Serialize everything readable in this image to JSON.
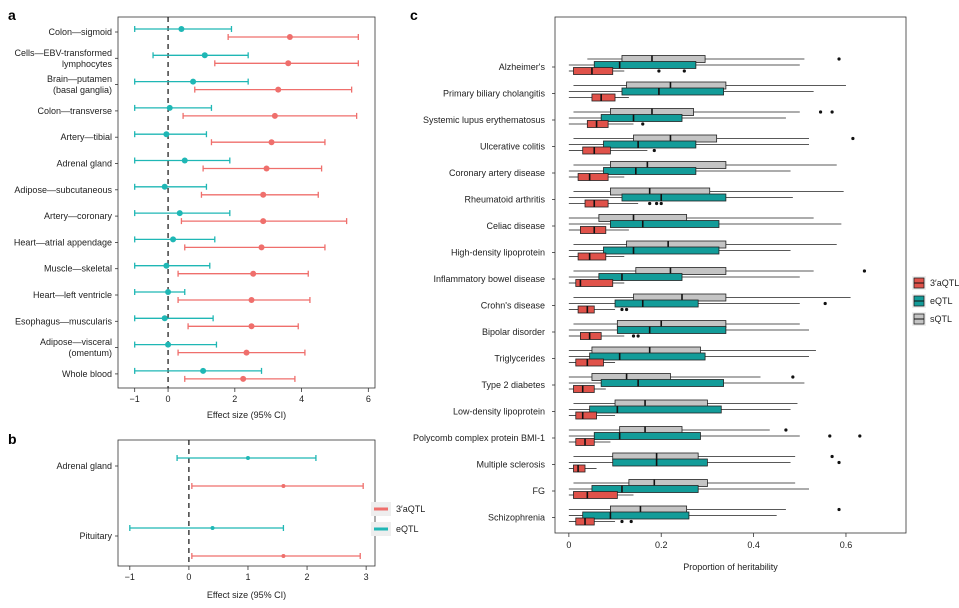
{
  "colors": {
    "aqtl": "#EF6F6C",
    "eqtl": "#1FB7B5",
    "sqtl": "#BEBEBE",
    "aqtl_box": "#E0524A",
    "eqtl_box": "#139C99",
    "sqtl_box": "#C4C4C4"
  },
  "chart_data": [
    {
      "id": "a",
      "panel_label": "a",
      "type": "forest",
      "xlabel": "Effect size (95% CI)",
      "xlim": [
        -1.5,
        6.2
      ],
      "xticks": [
        -1,
        0,
        2,
        4,
        6
      ],
      "xtick_labels": [
        "−1",
        "0",
        "2",
        "4",
        "6"
      ],
      "reference_line": 0,
      "categories": [
        [
          "Colon—sigmoid"
        ],
        [
          "Cells—EBV-transformed",
          "lymphocytes"
        ],
        [
          "Brain—putamen",
          "(basal ganglia)"
        ],
        [
          "Colon—transverse"
        ],
        [
          "Artery—tibial"
        ],
        [
          "Adrenal gland"
        ],
        [
          "Adipose—subcutaneous"
        ],
        [
          "Artery—coronary"
        ],
        [
          "Heart—atrial appendage"
        ],
        [
          "Muscle—skeletal"
        ],
        [
          "Heart—left ventricle"
        ],
        [
          "Esophagus—muscularis"
        ],
        [
          "Adipose—visceral",
          "(omentum)"
        ],
        [
          "Whole blood"
        ]
      ],
      "series": [
        {
          "name": "eQTL",
          "color_key": "eqtl",
          "estimate": [
            0.4,
            1.1,
            0.75,
            0.05,
            -0.05,
            0.5,
            -0.1,
            0.35,
            0.15,
            -0.05,
            0.0,
            -0.1,
            0.0,
            1.05
          ],
          "lower": [
            -1.0,
            -0.45,
            -1.0,
            -1.0,
            -1.0,
            -1.0,
            -1.0,
            -1.0,
            -1.0,
            -1.0,
            -1.0,
            -1.0,
            -1.0,
            -1.0
          ],
          "upper": [
            1.9,
            2.4,
            2.4,
            1.3,
            1.15,
            1.85,
            1.15,
            1.85,
            1.4,
            1.25,
            0.5,
            1.35,
            1.45,
            2.8
          ]
        },
        {
          "name": "3′aQTL",
          "color_key": "aqtl",
          "estimate": [
            3.65,
            3.6,
            3.3,
            3.2,
            3.1,
            2.95,
            2.85,
            2.85,
            2.8,
            2.55,
            2.5,
            2.5,
            2.35,
            2.25
          ],
          "lower": [
            1.8,
            1.4,
            0.8,
            0.45,
            1.3,
            1.05,
            1.0,
            0.4,
            0.5,
            0.3,
            0.3,
            0.6,
            0.3,
            0.5
          ],
          "upper": [
            5.7,
            5.7,
            5.5,
            5.65,
            4.7,
            4.6,
            4.5,
            5.35,
            4.7,
            4.2,
            4.25,
            3.9,
            4.1,
            3.8
          ]
        }
      ]
    },
    {
      "id": "b",
      "panel_label": "b",
      "type": "forest",
      "xlabel": "Effect size (95% CI)",
      "xlim": [
        -1.2,
        3.15
      ],
      "xticks": [
        -1,
        0,
        1,
        2,
        3
      ],
      "xtick_labels": [
        "−1",
        "0",
        "1",
        "2",
        "3"
      ],
      "reference_line": 0,
      "categories": [
        [
          "Adrenal gland"
        ],
        [
          "Pituitary"
        ]
      ],
      "series": [
        {
          "name": "eQTL",
          "color_key": "eqtl",
          "estimate": [
            1.0,
            0.4
          ],
          "lower": [
            -0.2,
            -1.0
          ],
          "upper": [
            2.15,
            1.6
          ]
        },
        {
          "name": "3′aQTL",
          "color_key": "aqtl",
          "estimate": [
            1.6,
            1.6
          ],
          "lower": [
            0.05,
            0.05
          ],
          "upper": [
            2.95,
            2.9
          ]
        }
      ],
      "legend": {
        "position": "right",
        "entries": [
          "3′aQTL",
          "eQTL"
        ],
        "color_keys": [
          "aqtl",
          "eqtl"
        ]
      }
    },
    {
      "id": "c",
      "panel_label": "c",
      "type": "box",
      "xlabel": "Proportion of heritability",
      "xlim": [
        -0.03,
        0.73
      ],
      "xticks": [
        0,
        0.2,
        0.4,
        0.6
      ],
      "xtick_labels": [
        "0",
        "0.2",
        "0.4",
        "0.6"
      ],
      "categories": [
        "Alzheimer's",
        "Primary biliary cholangitis",
        "Systemic lupus erythematosus",
        "Ulcerative colitis",
        "Coronary artery disease",
        "Rheumatoid arthritis",
        "Celiac disease",
        "High-density lipoprotein",
        "Inflammatory bowel disease",
        "Crohn's disease",
        "Bipolar disorder",
        "Triglycerides",
        "Type 2 diabetes",
        "Low-density lipoprotein",
        "Polycomb complex protein BMI-1",
        "Multiple sclerosis",
        "FG",
        "Schizophrenia"
      ],
      "legend": {
        "position": "right",
        "entries": [
          "3′aQTL",
          "eQTL",
          "sQTL"
        ],
        "color_keys": [
          "aqtl_box",
          "eqtl_box",
          "sqtl_box"
        ]
      },
      "series": [
        {
          "name": "sQTL",
          "color_key": "sqtl_box",
          "boxes": [
            {
              "min": 0.04,
              "q1": 0.115,
              "med": 0.18,
              "q3": 0.295,
              "max": 0.51,
              "outliers": [
                0.585
              ]
            },
            {
              "min": 0.01,
              "q1": 0.125,
              "med": 0.22,
              "q3": 0.34,
              "max": 0.6,
              "outliers": []
            },
            {
              "min": 0.01,
              "q1": 0.09,
              "med": 0.18,
              "q3": 0.27,
              "max": 0.5,
              "outliers": [
                0.545,
                0.57
              ]
            },
            {
              "min": 0.01,
              "q1": 0.14,
              "med": 0.22,
              "q3": 0.32,
              "max": 0.52,
              "outliers": [
                0.615
              ]
            },
            {
              "min": 0.01,
              "q1": 0.09,
              "med": 0.17,
              "q3": 0.34,
              "max": 0.58,
              "outliers": []
            },
            {
              "min": 0.01,
              "q1": 0.09,
              "med": 0.175,
              "q3": 0.305,
              "max": 0.595,
              "outliers": []
            },
            {
              "min": 0.0,
              "q1": 0.065,
              "med": 0.14,
              "q3": 0.255,
              "max": 0.53,
              "outliers": []
            },
            {
              "min": 0.01,
              "q1": 0.125,
              "med": 0.215,
              "q3": 0.34,
              "max": 0.58,
              "outliers": []
            },
            {
              "min": 0.01,
              "q1": 0.145,
              "med": 0.22,
              "q3": 0.34,
              "max": 0.53,
              "outliers": [
                0.64
              ]
            },
            {
              "min": 0.01,
              "q1": 0.14,
              "med": 0.245,
              "q3": 0.34,
              "max": 0.61,
              "outliers": []
            },
            {
              "min": 0.01,
              "q1": 0.105,
              "med": 0.2,
              "q3": 0.34,
              "max": 0.5,
              "outliers": []
            },
            {
              "min": 0.0,
              "q1": 0.05,
              "med": 0.175,
              "q3": 0.285,
              "max": 0.535,
              "outliers": []
            },
            {
              "min": 0.0,
              "q1": 0.05,
              "med": 0.125,
              "q3": 0.22,
              "max": 0.415,
              "outliers": [
                0.485
              ]
            },
            {
              "min": 0.01,
              "q1": 0.1,
              "med": 0.165,
              "q3": 0.3,
              "max": 0.495,
              "outliers": []
            },
            {
              "min": 0.0,
              "q1": 0.11,
              "med": 0.165,
              "q3": 0.245,
              "max": 0.435,
              "outliers": [
                0.47
              ]
            },
            {
              "min": 0.01,
              "q1": 0.095,
              "med": 0.19,
              "q3": 0.28,
              "max": 0.49,
              "outliers": [
                0.57
              ]
            },
            {
              "min": 0.01,
              "q1": 0.13,
              "med": 0.185,
              "q3": 0.3,
              "max": 0.49,
              "outliers": []
            },
            {
              "min": 0.0,
              "q1": 0.09,
              "med": 0.155,
              "q3": 0.255,
              "max": 0.47,
              "outliers": [
                0.585
              ]
            }
          ]
        },
        {
          "name": "eQTL",
          "color_key": "eqtl_box",
          "boxes": [
            {
              "min": 0.0,
              "q1": 0.055,
              "med": 0.11,
              "q3": 0.275,
              "max": 0.5,
              "outliers": []
            },
            {
              "min": 0.0,
              "q1": 0.115,
              "med": 0.195,
              "q3": 0.335,
              "max": 0.53,
              "outliers": []
            },
            {
              "min": 0.0,
              "q1": 0.07,
              "med": 0.14,
              "q3": 0.245,
              "max": 0.47,
              "outliers": []
            },
            {
              "min": 0.0,
              "q1": 0.075,
              "med": 0.15,
              "q3": 0.275,
              "max": 0.52,
              "outliers": []
            },
            {
              "min": 0.0,
              "q1": 0.075,
              "med": 0.145,
              "q3": 0.275,
              "max": 0.48,
              "outliers": []
            },
            {
              "min": 0.0,
              "q1": 0.115,
              "med": 0.2,
              "q3": 0.34,
              "max": 0.485,
              "outliers": []
            },
            {
              "min": 0.0,
              "q1": 0.09,
              "med": 0.16,
              "q3": 0.325,
              "max": 0.59,
              "outliers": []
            },
            {
              "min": 0.0,
              "q1": 0.075,
              "med": 0.14,
              "q3": 0.325,
              "max": 0.48,
              "outliers": []
            },
            {
              "min": 0.0,
              "q1": 0.065,
              "med": 0.115,
              "q3": 0.245,
              "max": 0.5,
              "outliers": []
            },
            {
              "min": 0.0,
              "q1": 0.1,
              "med": 0.16,
              "q3": 0.28,
              "max": 0.5,
              "outliers": [
                0.555
              ]
            },
            {
              "min": 0.0,
              "q1": 0.105,
              "med": 0.175,
              "q3": 0.34,
              "max": 0.52,
              "outliers": []
            },
            {
              "min": 0.0,
              "q1": 0.045,
              "med": 0.11,
              "q3": 0.295,
              "max": 0.52,
              "outliers": []
            },
            {
              "min": 0.0,
              "q1": 0.07,
              "med": 0.15,
              "q3": 0.335,
              "max": 0.51,
              "outliers": []
            },
            {
              "min": 0.0,
              "q1": 0.045,
              "med": 0.105,
              "q3": 0.33,
              "max": 0.48,
              "outliers": []
            },
            {
              "min": 0.0,
              "q1": 0.055,
              "med": 0.11,
              "q3": 0.285,
              "max": 0.5,
              "outliers": [
                0.565,
                0.63
              ]
            },
            {
              "min": 0.0,
              "q1": 0.095,
              "med": 0.19,
              "q3": 0.3,
              "max": 0.48,
              "outliers": [
                0.585
              ]
            },
            {
              "min": 0.0,
              "q1": 0.05,
              "med": 0.115,
              "q3": 0.28,
              "max": 0.52,
              "outliers": []
            },
            {
              "min": 0.0,
              "q1": 0.03,
              "med": 0.09,
              "q3": 0.26,
              "max": 0.45,
              "outliers": []
            }
          ]
        },
        {
          "name": "3′aQTL",
          "color_key": "aqtl_box",
          "boxes": [
            {
              "min": 0.0,
              "q1": 0.01,
              "med": 0.05,
              "q3": 0.095,
              "max": 0.12,
              "outliers": [
                0.195,
                0.25
              ]
            },
            {
              "min": 0.0,
              "q1": 0.05,
              "med": 0.07,
              "q3": 0.1,
              "max": 0.13,
              "outliers": []
            },
            {
              "min": 0.0,
              "q1": 0.04,
              "med": 0.06,
              "q3": 0.085,
              "max": 0.14,
              "outliers": [
                0.16
              ]
            },
            {
              "min": 0.0,
              "q1": 0.03,
              "med": 0.055,
              "q3": 0.09,
              "max": 0.17,
              "outliers": [
                0.185
              ]
            },
            {
              "min": 0.0,
              "q1": 0.02,
              "med": 0.045,
              "q3": 0.085,
              "max": 0.12,
              "outliers": []
            },
            {
              "min": 0.0,
              "q1": 0.035,
              "med": 0.055,
              "q3": 0.085,
              "max": 0.15,
              "outliers": [
                0.175,
                0.19,
                0.2
              ]
            },
            {
              "min": 0.0,
              "q1": 0.025,
              "med": 0.055,
              "q3": 0.08,
              "max": 0.13,
              "outliers": []
            },
            {
              "min": 0.0,
              "q1": 0.02,
              "med": 0.045,
              "q3": 0.08,
              "max": 0.12,
              "outliers": []
            },
            {
              "min": 0.0,
              "q1": 0.015,
              "med": 0.025,
              "q3": 0.095,
              "max": 0.12,
              "outliers": []
            },
            {
              "min": 0.0,
              "q1": 0.02,
              "med": 0.04,
              "q3": 0.055,
              "max": 0.1,
              "outliers": [
                0.115,
                0.125
              ]
            },
            {
              "min": 0.0,
              "q1": 0.025,
              "med": 0.045,
              "q3": 0.07,
              "max": 0.12,
              "outliers": [
                0.14,
                0.15
              ]
            },
            {
              "min": 0.0,
              "q1": 0.015,
              "med": 0.04,
              "q3": 0.075,
              "max": 0.1,
              "outliers": []
            },
            {
              "min": 0.0,
              "q1": 0.01,
              "med": 0.03,
              "q3": 0.055,
              "max": 0.08,
              "outliers": []
            },
            {
              "min": 0.0,
              "q1": 0.015,
              "med": 0.03,
              "q3": 0.06,
              "max": 0.1,
              "outliers": []
            },
            {
              "min": 0.0,
              "q1": 0.015,
              "med": 0.035,
              "q3": 0.055,
              "max": 0.09,
              "outliers": []
            },
            {
              "min": 0.0,
              "q1": 0.01,
              "med": 0.02,
              "q3": 0.035,
              "max": 0.06,
              "outliers": []
            },
            {
              "min": 0.0,
              "q1": 0.01,
              "med": 0.04,
              "q3": 0.105,
              "max": 0.14,
              "outliers": []
            },
            {
              "min": 0.0,
              "q1": 0.015,
              "med": 0.035,
              "q3": 0.055,
              "max": 0.1,
              "outliers": [
                0.115,
                0.135
              ]
            }
          ]
        }
      ]
    }
  ]
}
